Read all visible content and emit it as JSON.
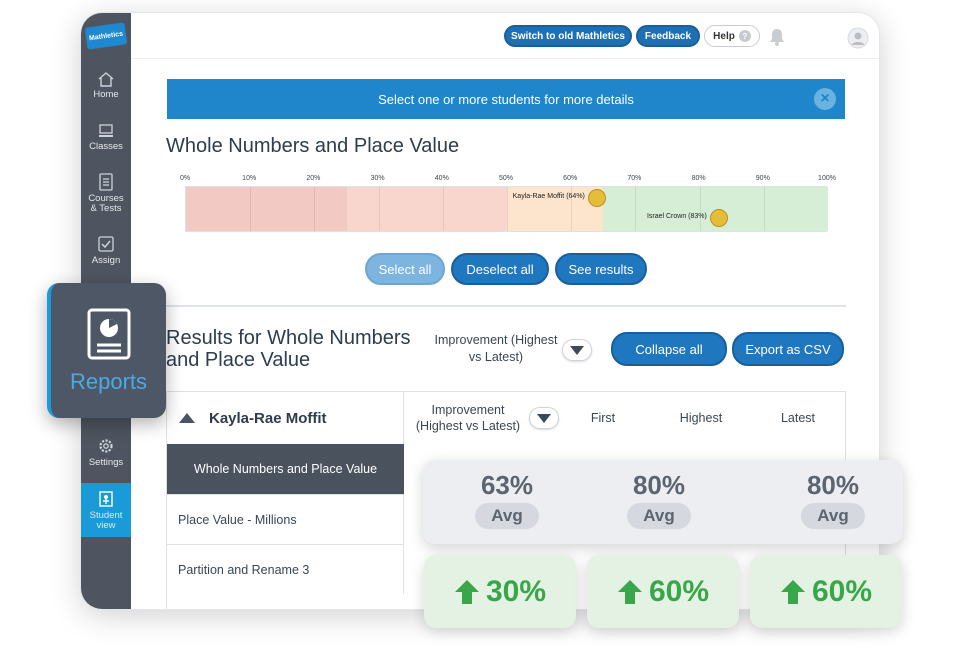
{
  "app": {
    "logo_text": "Mathletics"
  },
  "sidebar": {
    "items": [
      {
        "label": "Home",
        "icon": "home-icon"
      },
      {
        "label": "Classes",
        "icon": "classes-icon"
      },
      {
        "label": "Courses & Tests",
        "icon": "courses-icon"
      },
      {
        "label": "Assign",
        "icon": "assign-icon"
      },
      {
        "label": "Settings",
        "icon": "gear-icon"
      },
      {
        "label": "Student view",
        "icon": "student-view-icon"
      }
    ],
    "active_label": "Reports"
  },
  "topbar": {
    "switch_label": "Switch to old Mathletics",
    "feedback_label": "Feedback",
    "help_label": "Help",
    "help_mark": "?"
  },
  "banner": {
    "text": "Select one or more students for more details",
    "close_glyph": "×"
  },
  "section": {
    "title": "Whole Numbers and Place Value"
  },
  "scale": {
    "ticks": [
      "0%",
      "10%",
      "20%",
      "30%",
      "40%",
      "50%",
      "60%",
      "70%",
      "80%",
      "90%",
      "100%"
    ],
    "students": [
      {
        "name": "Kayla-Rae Moffit (64%)",
        "value": 64
      },
      {
        "name": "Israel Crown (83%)",
        "value": 83
      }
    ],
    "band_colors": [
      "#f3c9c3",
      "#f9d6cd",
      "#fde4cc",
      "#d6eed6"
    ]
  },
  "actions": {
    "select_all": "Select all",
    "deselect_all": "Deselect all",
    "see_results": "See results"
  },
  "results": {
    "title": "Results for Whole Numbers and Place Value",
    "sort_label": "Improvement (Highest vs Latest)",
    "collapse_all": "Collapse all",
    "export_csv": "Export as CSV"
  },
  "table": {
    "student_name": "Kayla-Rae Moffit",
    "columns": [
      "Improvement (Highest vs Latest)",
      "First",
      "Highest",
      "Latest"
    ],
    "group_row": "Whole Numbers and Place Value",
    "rows": [
      "Place Value - Millions",
      "Partition and Rename 3"
    ]
  },
  "overlay": {
    "nav_label": "Reports",
    "averages": [
      {
        "value": "63%",
        "tag": "Avg"
      },
      {
        "value": "80%",
        "tag": "Avg"
      },
      {
        "value": "80%",
        "tag": "Avg"
      }
    ],
    "improvements": [
      "30%",
      "60%",
      "60%"
    ],
    "improvement_color": "#3aa64a"
  }
}
